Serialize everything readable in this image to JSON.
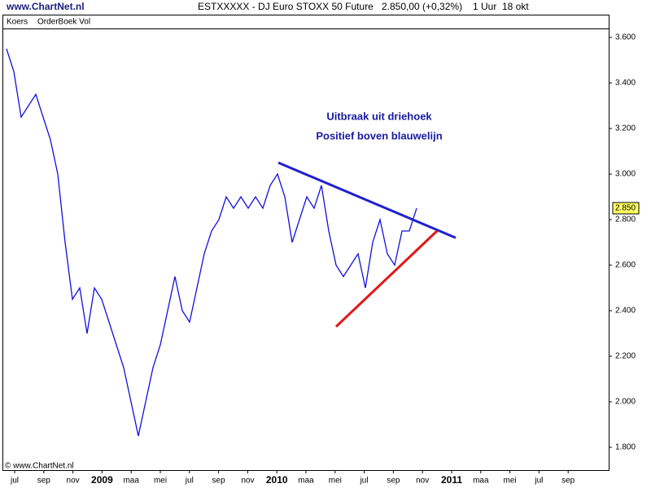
{
  "header": {
    "site": "www.ChartNet.nl",
    "instrument": "ESTXXXXX - DJ Euro STOXX 50 Future",
    "quote": "2.850,00 (+0,32%)",
    "interval": "1 Uur",
    "date": "18 okt"
  },
  "tabs": [
    "Koers",
    "OrderBoek Vol"
  ],
  "footer": "© www.ChartNet.nl",
  "chart_data": {
    "type": "line",
    "annotations": [
      "Uitbraak uit driehoek",
      "Positief boven blauwelijn"
    ],
    "xticks": [
      "jul",
      "sep",
      "nov",
      "2009",
      "maa",
      "mei",
      "jul",
      "sep",
      "nov",
      "2010",
      "maa",
      "mei",
      "jul",
      "sep",
      "nov",
      "2011",
      "maa",
      "mei",
      "jul",
      "sep"
    ],
    "ylim": [
      1700,
      3700
    ],
    "yticks": [
      {
        "value": 1800,
        "label": "1.800"
      },
      {
        "value": 2000,
        "label": "2.000"
      },
      {
        "value": 2200,
        "label": "2.200"
      },
      {
        "value": 2400,
        "label": "2.400"
      },
      {
        "value": 2600,
        "label": "2.600"
      },
      {
        "value": 2800,
        "label": "2.800"
      },
      {
        "value": 3000,
        "label": "3.000"
      },
      {
        "value": 3200,
        "label": "3.200"
      },
      {
        "value": 3400,
        "label": "3.400"
      },
      {
        "value": 3600,
        "label": "3.600"
      }
    ],
    "series": [
      {
        "color": "#1010e0",
        "values": [
          3550,
          3450,
          3250,
          3300,
          3350,
          3250,
          3150,
          3000,
          2700,
          2450,
          2500,
          2300,
          2500,
          2450,
          2350,
          2250,
          2150,
          2000,
          1850,
          2000,
          2150,
          2250,
          2400,
          2550,
          2400,
          2350,
          2500,
          2650,
          2750,
          2800,
          2900,
          2850,
          2900,
          2850,
          2900,
          2850,
          2950,
          3000,
          2900,
          2700,
          2800,
          2900,
          2850,
          2950,
          2750,
          2600,
          2550,
          2600,
          2650,
          2500,
          2700,
          2800,
          2650,
          2600,
          2750,
          2750,
          2850
        ]
      }
    ],
    "trendlines": [
      {
        "color": "#2020d0",
        "values": [
          3050,
          2720
        ]
      },
      {
        "color": "#e01818",
        "values": [
          2330,
          2750
        ]
      }
    ],
    "last_price": {
      "value": 2850,
      "label": "2.850"
    }
  }
}
